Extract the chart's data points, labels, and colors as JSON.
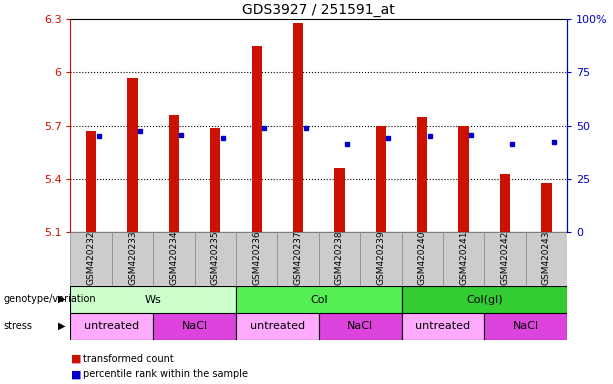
{
  "title": "GDS3927 / 251591_at",
  "samples": [
    "GSM420232",
    "GSM420233",
    "GSM420234",
    "GSM420235",
    "GSM420236",
    "GSM420237",
    "GSM420238",
    "GSM420239",
    "GSM420240",
    "GSM420241",
    "GSM420242",
    "GSM420243"
  ],
  "bar_values": [
    5.67,
    5.97,
    5.76,
    5.69,
    6.15,
    6.28,
    5.46,
    5.7,
    5.75,
    5.7,
    5.43,
    5.38
  ],
  "percentile_values": [
    5.64,
    5.67,
    5.65,
    5.63,
    5.69,
    5.69,
    5.6,
    5.63,
    5.64,
    5.65,
    5.6,
    5.61
  ],
  "ymin": 5.1,
  "ymax": 6.3,
  "yticks": [
    5.1,
    5.4,
    5.7,
    6.0,
    6.3
  ],
  "ytick_labels": [
    "5.1",
    "5.4",
    "5.7",
    "6",
    "6.3"
  ],
  "right_yticks": [
    0,
    25,
    50,
    75,
    100
  ],
  "right_ytick_labels": [
    "0",
    "25",
    "50",
    "75",
    "100%"
  ],
  "bar_color": "#cc1100",
  "dot_color": "#0000cc",
  "genotype_groups": [
    {
      "label": "Ws",
      "start": 0,
      "end": 4,
      "color": "#ccffcc"
    },
    {
      "label": "Col",
      "start": 4,
      "end": 8,
      "color": "#55ee55"
    },
    {
      "label": "Col(gl)",
      "start": 8,
      "end": 12,
      "color": "#33cc33"
    }
  ],
  "stress_groups": [
    {
      "label": "untreated",
      "start": 0,
      "end": 2,
      "color": "#ffaaff"
    },
    {
      "label": "NaCl",
      "start": 2,
      "end": 4,
      "color": "#dd44dd"
    },
    {
      "label": "untreated",
      "start": 4,
      "end": 6,
      "color": "#ffaaff"
    },
    {
      "label": "NaCl",
      "start": 6,
      "end": 8,
      "color": "#dd44dd"
    },
    {
      "label": "untreated",
      "start": 8,
      "end": 10,
      "color": "#ffaaff"
    },
    {
      "label": "NaCl",
      "start": 10,
      "end": 12,
      "color": "#dd44dd"
    }
  ],
  "legend_items": [
    {
      "label": "transformed count",
      "color": "#cc1100"
    },
    {
      "label": "percentile rank within the sample",
      "color": "#0000cc"
    }
  ],
  "xlabel_genotype": "genotype/variation",
  "xlabel_stress": "stress"
}
